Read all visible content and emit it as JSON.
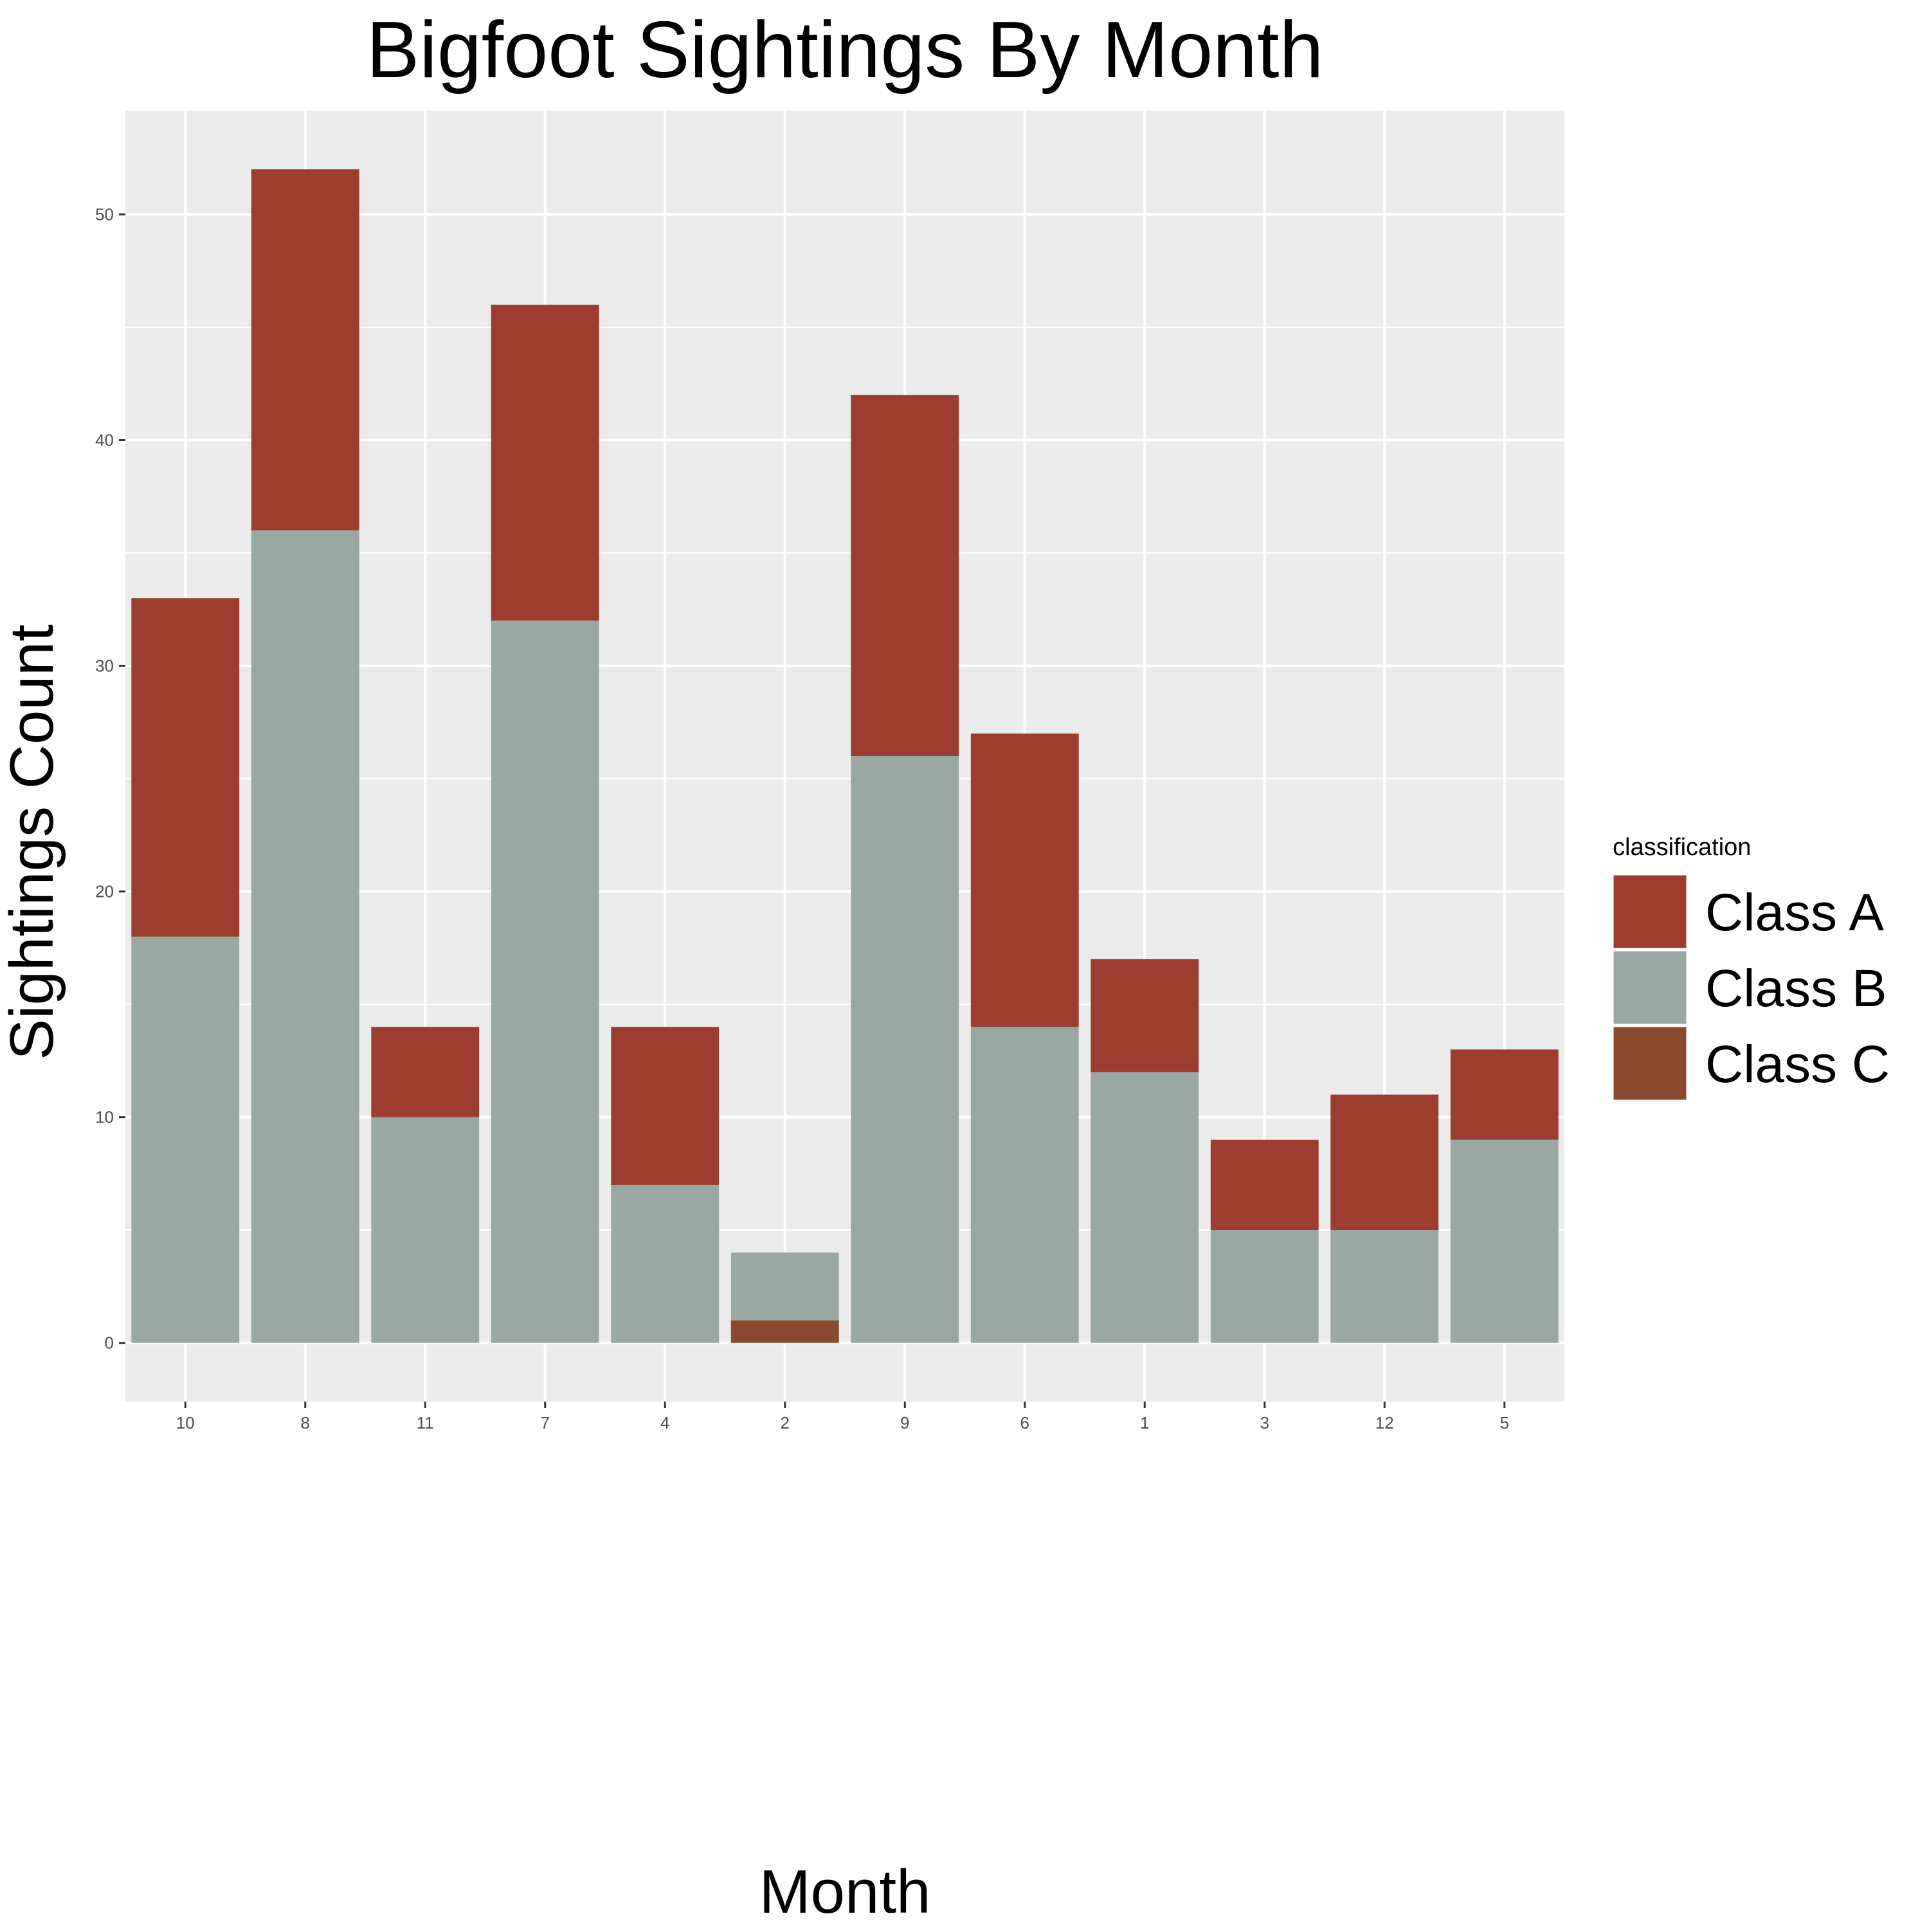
{
  "chart_data": {
    "type": "bar",
    "stacked": true,
    "title": "Bigfoot Sightings By Month",
    "xlabel": "Month",
    "ylabel": "Sightings Count",
    "categories": [
      "10",
      "8",
      "11",
      "7",
      "4",
      "2",
      "9",
      "6",
      "1",
      "3",
      "12",
      "5"
    ],
    "series": [
      {
        "name": "Class C",
        "color": "#8B4A2E",
        "values": [
          0,
          0,
          0,
          0,
          0,
          1,
          0,
          0,
          0,
          0,
          0,
          0
        ]
      },
      {
        "name": "Class B",
        "color": "#9AA8A4",
        "values": [
          18,
          36,
          10,
          32,
          7,
          3,
          26,
          14,
          12,
          5,
          5,
          9
        ]
      },
      {
        "name": "Class A",
        "color": "#9C3D30",
        "values": [
          15,
          16,
          4,
          14,
          7,
          0,
          16,
          13,
          5,
          4,
          6,
          4
        ]
      }
    ],
    "ylim": [
      -2.6,
      54.6
    ],
    "yticks": [
      0,
      10,
      20,
      30,
      40,
      50
    ],
    "grid": true,
    "legend": {
      "title": "classification",
      "position": "right",
      "order": [
        "Class A",
        "Class B",
        "Class C"
      ]
    },
    "panel_color": "#EBEBEB",
    "grid_color": "#FFFFFF"
  }
}
